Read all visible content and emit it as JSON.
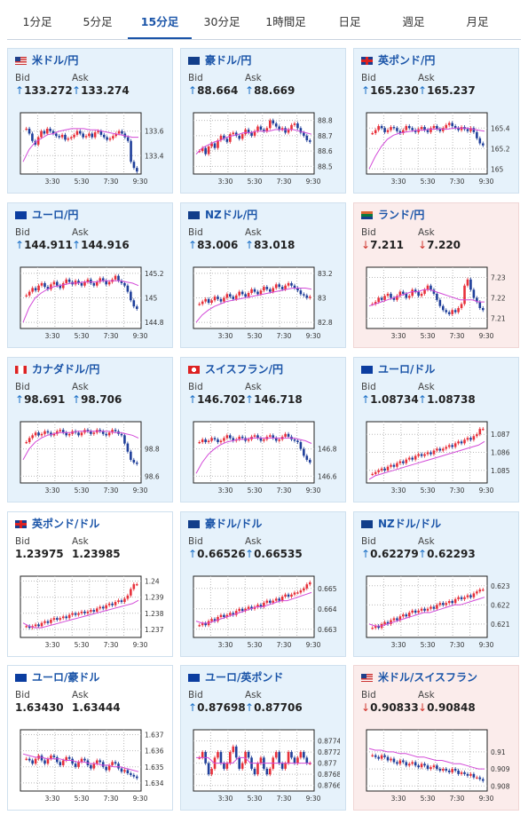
{
  "tabs": [
    "1分足",
    "5分足",
    "15分足",
    "30分足",
    "1時間足",
    "日足",
    "週足",
    "月足"
  ],
  "active_tab_index": 2,
  "labels": {
    "bid": "Bid",
    "ask": "Ask"
  },
  "colors": {
    "up": "#1a6fc6",
    "down": "#d0342c",
    "card_blue": "#e6f2fb",
    "card_red": "#fbeceb",
    "ma": "#d34ad8",
    "grid": "#b9b9b9"
  },
  "cards": [
    {
      "pair": "米ドル/円",
      "flag": "us",
      "direction": "up",
      "bid": "133.272",
      "ask": "133.274",
      "x_ticks": [
        "3:30",
        "5:30",
        "7:30",
        "9:30"
      ],
      "y_ticks": [
        "133.6",
        "133.4"
      ],
      "ymin": 133.25,
      "ymax": 133.75,
      "closes": [
        133.62,
        133.58,
        133.52,
        133.49,
        133.55,
        133.6,
        133.58,
        133.62,
        133.6,
        133.58,
        133.56,
        133.55,
        133.57,
        133.53,
        133.54,
        133.55,
        133.57,
        133.6,
        133.58,
        133.55,
        133.56,
        133.58,
        133.55,
        133.59,
        133.6,
        133.57,
        133.55,
        133.53,
        133.54,
        133.56,
        133.58,
        133.6,
        133.58,
        133.55,
        133.52,
        133.35,
        133.3,
        133.27
      ],
      "ma": [
        133.35,
        133.45,
        133.51,
        133.54,
        133.57,
        133.58,
        133.6,
        133.61,
        133.62,
        133.62,
        133.62,
        133.61,
        133.61,
        133.6,
        133.59,
        133.58,
        133.57,
        133.56,
        133.55,
        133.55
      ]
    },
    {
      "pair": "豪ドル/円",
      "flag": "au",
      "direction": "up",
      "bid": "88.664",
      "ask": "88.669",
      "x_ticks": [
        "3:30",
        "5:30",
        "7:30",
        "9:30"
      ],
      "y_ticks": [
        "88.8",
        "88.7",
        "88.6",
        "88.5"
      ],
      "ymin": 88.45,
      "ymax": 88.85,
      "closes": [
        88.6,
        88.62,
        88.58,
        88.63,
        88.65,
        88.62,
        88.67,
        88.7,
        88.68,
        88.66,
        88.71,
        88.72,
        88.7,
        88.68,
        88.71,
        88.74,
        88.72,
        88.7,
        88.73,
        88.76,
        88.74,
        88.73,
        88.75,
        88.8,
        88.78,
        88.76,
        88.74,
        88.75,
        88.72,
        88.74,
        88.77,
        88.78,
        88.75,
        88.72,
        88.7,
        88.67,
        88.66
      ],
      "ma": [
        88.58,
        88.62,
        88.64,
        88.66,
        88.67,
        88.69,
        88.7,
        88.71,
        88.72,
        88.72,
        88.73,
        88.73,
        88.73,
        88.74,
        88.74,
        88.74,
        88.74,
        88.73,
        88.72,
        88.71
      ]
    },
    {
      "pair": "英ポンド/円",
      "flag": "gb",
      "direction": "up",
      "bid": "165.230",
      "ask": "165.237",
      "x_ticks": [
        "3:30",
        "5:30",
        "7:30",
        "9:30"
      ],
      "y_ticks": [
        "165.4",
        "165.2",
        "165"
      ],
      "ymin": 164.95,
      "ymax": 165.55,
      "closes": [
        165.35,
        165.38,
        165.42,
        165.4,
        165.36,
        165.38,
        165.41,
        165.4,
        165.37,
        165.35,
        165.38,
        165.42,
        165.4,
        165.38,
        165.36,
        165.39,
        165.41,
        165.38,
        165.36,
        165.4,
        165.42,
        165.39,
        165.37,
        165.4,
        165.43,
        165.45,
        165.42,
        165.4,
        165.38,
        165.41,
        165.39,
        165.37,
        165.4,
        165.36,
        165.3,
        165.25,
        165.23
      ],
      "ma": [
        165.0,
        165.12,
        165.22,
        165.29,
        165.33,
        165.35,
        165.36,
        165.37,
        165.38,
        165.38,
        165.39,
        165.39,
        165.39,
        165.39,
        165.4,
        165.4,
        165.4,
        165.39,
        165.38,
        165.37
      ]
    },
    {
      "pair": "ユーロ/円",
      "flag": "eu",
      "direction": "up",
      "bid": "144.911",
      "ask": "144.916",
      "x_ticks": [
        "3:30",
        "5:30",
        "7:30",
        "9:30"
      ],
      "y_ticks": [
        "145.2",
        "145",
        "144.8"
      ],
      "ymin": 144.75,
      "ymax": 145.25,
      "closes": [
        145.02,
        145.05,
        145.08,
        145.06,
        145.1,
        145.12,
        145.09,
        145.07,
        145.11,
        145.13,
        145.1,
        145.08,
        145.12,
        145.15,
        145.13,
        145.11,
        145.14,
        145.12,
        145.1,
        145.13,
        145.15,
        145.12,
        145.1,
        145.13,
        145.16,
        145.14,
        145.11,
        145.13,
        145.15,
        145.18,
        145.14,
        145.12,
        145.1,
        145.05,
        144.98,
        144.93,
        144.91
      ],
      "ma": [
        144.8,
        144.92,
        145.0,
        145.04,
        145.07,
        145.09,
        145.1,
        145.11,
        145.12,
        145.12,
        145.13,
        145.13,
        145.13,
        145.14,
        145.14,
        145.14,
        145.14,
        145.13,
        145.12,
        145.1
      ]
    },
    {
      "pair": "NZドル/円",
      "flag": "nz",
      "direction": "up",
      "bid": "83.006",
      "ask": "83.018",
      "x_ticks": [
        "3:30",
        "5:30",
        "7:30",
        "9:30"
      ],
      "y_ticks": [
        "83.2",
        "83",
        "82.8"
      ],
      "ymin": 82.75,
      "ymax": 83.25,
      "closes": [
        82.95,
        82.97,
        82.99,
        82.96,
        82.98,
        83.01,
        82.99,
        82.97,
        83.0,
        83.03,
        83.01,
        82.99,
        83.02,
        83.05,
        83.03,
        83.01,
        83.04,
        83.07,
        83.05,
        83.03,
        83.06,
        83.09,
        83.07,
        83.05,
        83.08,
        83.11,
        83.09,
        83.07,
        83.1,
        83.12,
        83.1,
        83.08,
        83.06,
        83.03,
        83.02,
        83.0,
        83.01
      ],
      "ma": [
        82.8,
        82.86,
        82.9,
        82.93,
        82.95,
        82.97,
        82.98,
        82.99,
        83.0,
        83.01,
        83.02,
        83.03,
        83.04,
        83.05,
        83.06,
        83.07,
        83.08,
        83.08,
        83.08,
        83.07
      ]
    },
    {
      "pair": "ランド/円",
      "flag": "za",
      "direction": "down",
      "bid": "7.211",
      "ask": "7.220",
      "x_ticks": [
        "3:30",
        "5:30",
        "7:30",
        "9:30"
      ],
      "y_ticks": [
        "7.23",
        "7.22",
        "7.21"
      ],
      "ymin": 7.205,
      "ymax": 7.235,
      "closes": [
        7.217,
        7.218,
        7.22,
        7.219,
        7.221,
        7.222,
        7.22,
        7.219,
        7.221,
        7.223,
        7.222,
        7.22,
        7.221,
        7.224,
        7.223,
        7.221,
        7.222,
        7.224,
        7.226,
        7.224,
        7.222,
        7.219,
        7.216,
        7.214,
        7.213,
        7.212,
        7.214,
        7.213,
        7.215,
        7.217,
        7.226,
        7.229,
        7.224,
        7.22,
        7.218,
        7.215,
        7.214
      ],
      "ma": [
        7.216,
        7.217,
        7.218,
        7.219,
        7.22,
        7.221,
        7.222,
        7.223,
        7.223,
        7.224,
        7.224,
        7.223,
        7.222,
        7.221,
        7.22,
        7.219,
        7.219,
        7.219,
        7.218,
        7.218
      ]
    },
    {
      "pair": "カナダドル/円",
      "flag": "ca",
      "direction": "up",
      "bid": "98.691",
      "ask": "98.706",
      "x_ticks": [
        "3:30",
        "5:30",
        "7:30",
        "9:30"
      ],
      "y_ticks": [
        "98.8",
        "98.6"
      ],
      "ymin": 98.55,
      "ymax": 99.0,
      "closes": [
        98.85,
        98.88,
        98.9,
        98.92,
        98.9,
        98.91,
        98.93,
        98.92,
        98.9,
        98.91,
        98.93,
        98.94,
        98.92,
        98.9,
        98.91,
        98.93,
        98.92,
        98.9,
        98.92,
        98.94,
        98.93,
        98.91,
        98.92,
        98.94,
        98.93,
        98.91,
        98.9,
        98.92,
        98.94,
        98.93,
        98.91,
        98.9,
        98.84,
        98.78,
        98.72,
        98.7,
        98.69
      ],
      "ma": [
        98.72,
        98.8,
        98.85,
        98.88,
        98.9,
        98.91,
        98.92,
        98.92,
        98.92,
        98.93,
        98.93,
        98.93,
        98.93,
        98.93,
        98.93,
        98.92,
        98.92,
        98.91,
        98.9,
        98.88
      ]
    },
    {
      "pair": "スイスフラン/円",
      "flag": "ch",
      "direction": "up",
      "bid": "146.702",
      "ask": "146.718",
      "x_ticks": [
        "3:30",
        "5:30",
        "7:30",
        "9:30"
      ],
      "y_ticks": [
        "146.8",
        "146.6"
      ],
      "ymin": 146.55,
      "ymax": 147.0,
      "closes": [
        146.85,
        146.87,
        146.85,
        146.86,
        146.88,
        146.87,
        146.85,
        146.86,
        146.88,
        146.9,
        146.88,
        146.86,
        146.87,
        146.89,
        146.88,
        146.86,
        146.87,
        146.89,
        146.9,
        146.88,
        146.86,
        146.87,
        146.89,
        146.9,
        146.88,
        146.86,
        146.87,
        146.89,
        146.91,
        146.89,
        146.87,
        146.86,
        146.85,
        146.8,
        146.75,
        146.72,
        146.7
      ],
      "ma": [
        146.62,
        146.7,
        146.76,
        146.8,
        146.83,
        146.85,
        146.86,
        146.87,
        146.87,
        146.88,
        146.88,
        146.88,
        146.88,
        146.88,
        146.88,
        146.88,
        146.88,
        146.87,
        146.86,
        146.84
      ]
    },
    {
      "pair": "ユーロ/ドル",
      "flag": "eu",
      "direction": "up",
      "bid": "1.08734",
      "ask": "1.08738",
      "x_ticks": [
        "3:30",
        "5:30",
        "7:30",
        "9:30"
      ],
      "y_ticks": [
        "1.087",
        "1.086",
        "1.085"
      ],
      "ymin": 1.0843,
      "ymax": 1.0877,
      "closes": [
        1.0848,
        1.0849,
        1.085,
        1.0851,
        1.085,
        1.0852,
        1.0853,
        1.0852,
        1.0854,
        1.0855,
        1.0854,
        1.0856,
        1.0857,
        1.0856,
        1.0858,
        1.0859,
        1.0858,
        1.0859,
        1.086,
        1.0859,
        1.0861,
        1.0862,
        1.0861,
        1.0862,
        1.0863,
        1.0864,
        1.0863,
        1.0865,
        1.0866,
        1.0865,
        1.0867,
        1.0868,
        1.0867,
        1.0869,
        1.087,
        1.0873,
        1.0873
      ],
      "ma": [
        1.0845,
        1.0847,
        1.0848,
        1.0849,
        1.085,
        1.0851,
        1.0852,
        1.0853,
        1.0854,
        1.0855,
        1.0856,
        1.0857,
        1.0858,
        1.0859,
        1.086,
        1.0861,
        1.0862,
        1.0863,
        1.0864,
        1.0866
      ]
    },
    {
      "pair": "英ポンド/ドル",
      "flag": "gb",
      "direction": "none",
      "bid": "1.23975",
      "ask": "1.23985",
      "x_ticks": [
        "3:30",
        "5:30",
        "7:30",
        "9:30"
      ],
      "y_ticks": [
        "1.24",
        "1.239",
        "1.238",
        "1.237"
      ],
      "ymin": 1.2365,
      "ymax": 1.2403,
      "closes": [
        1.2372,
        1.2371,
        1.2372,
        1.2373,
        1.2372,
        1.2374,
        1.2375,
        1.2374,
        1.2376,
        1.2377,
        1.2376,
        1.2377,
        1.2378,
        1.2377,
        1.2379,
        1.238,
        1.2379,
        1.238,
        1.2381,
        1.238,
        1.2381,
        1.2382,
        1.2381,
        1.2383,
        1.2384,
        1.2383,
        1.2385,
        1.2386,
        1.2385,
        1.2387,
        1.2388,
        1.2387,
        1.2389,
        1.2391,
        1.2395,
        1.2398,
        1.2398
      ],
      "ma": [
        1.2374,
        1.2372,
        1.2371,
        1.2371,
        1.2372,
        1.2373,
        1.2374,
        1.2375,
        1.2376,
        1.2377,
        1.2378,
        1.2379,
        1.238,
        1.2381,
        1.2382,
        1.2383,
        1.2384,
        1.2385,
        1.2386,
        1.2388
      ]
    },
    {
      "pair": "豪ドル/ドル",
      "flag": "au",
      "direction": "up",
      "bid": "0.66526",
      "ask": "0.66535",
      "x_ticks": [
        "3:30",
        "5:30",
        "7:30",
        "9:30"
      ],
      "y_ticks": [
        "0.665",
        "0.664",
        "0.663"
      ],
      "ymin": 0.6626,
      "ymax": 0.6656,
      "closes": [
        0.6632,
        0.6633,
        0.6632,
        0.6634,
        0.6635,
        0.6634,
        0.6636,
        0.6637,
        0.6636,
        0.6637,
        0.6638,
        0.6637,
        0.6639,
        0.664,
        0.6639,
        0.664,
        0.6641,
        0.664,
        0.6641,
        0.6642,
        0.6641,
        0.6643,
        0.6644,
        0.6643,
        0.6644,
        0.6645,
        0.6644,
        0.6646,
        0.6647,
        0.6646,
        0.6647,
        0.6648,
        0.6648,
        0.6649,
        0.665,
        0.6652,
        0.6653
      ],
      "ma": [
        0.6634,
        0.6633,
        0.6633,
        0.6634,
        0.6635,
        0.6636,
        0.6637,
        0.6638,
        0.6639,
        0.664,
        0.6641,
        0.6641,
        0.6642,
        0.6643,
        0.6644,
        0.6644,
        0.6645,
        0.6646,
        0.6647,
        0.6648
      ]
    },
    {
      "pair": "NZドル/ドル",
      "flag": "nz",
      "direction": "up",
      "bid": "0.62279",
      "ask": "0.62293",
      "x_ticks": [
        "3:30",
        "5:30",
        "7:30",
        "9:30"
      ],
      "y_ticks": [
        "0.623",
        "0.622",
        "0.621"
      ],
      "ymin": 0.6203,
      "ymax": 0.6235,
      "closes": [
        0.6208,
        0.6209,
        0.6208,
        0.621,
        0.6211,
        0.621,
        0.6212,
        0.6213,
        0.6212,
        0.6214,
        0.6215,
        0.6214,
        0.6216,
        0.6217,
        0.6216,
        0.6217,
        0.6218,
        0.6217,
        0.6218,
        0.6219,
        0.6218,
        0.622,
        0.6221,
        0.622,
        0.6221,
        0.6222,
        0.6221,
        0.6223,
        0.6224,
        0.6223,
        0.6224,
        0.6225,
        0.6224,
        0.6226,
        0.6227,
        0.6228,
        0.6228
      ],
      "ma": [
        0.621,
        0.6209,
        0.6209,
        0.621,
        0.6211,
        0.6212,
        0.6213,
        0.6214,
        0.6215,
        0.6216,
        0.6216,
        0.6217,
        0.6218,
        0.6219,
        0.622,
        0.622,
        0.6221,
        0.6222,
        0.6223,
        0.6224
      ]
    },
    {
      "pair": "ユーロ/豪ドル",
      "flag": "eu",
      "direction": "none",
      "bid": "1.63430",
      "ask": "1.63444",
      "x_ticks": [
        "3:30",
        "5:30",
        "7:30",
        "9:30"
      ],
      "y_ticks": [
        "1.637",
        "1.636",
        "1.635",
        "1.634"
      ],
      "ymin": 1.6335,
      "ymax": 1.6373,
      "closes": [
        1.6355,
        1.6354,
        1.6352,
        1.6355,
        1.6357,
        1.6354,
        1.6352,
        1.6355,
        1.6357,
        1.6356,
        1.6353,
        1.6351,
        1.6354,
        1.6356,
        1.6355,
        1.6352,
        1.635,
        1.6353,
        1.6355,
        1.6354,
        1.6351,
        1.6349,
        1.6352,
        1.6354,
        1.6353,
        1.635,
        1.6348,
        1.6351,
        1.6353,
        1.6352,
        1.6349,
        1.6347,
        1.6348,
        1.6346,
        1.6345,
        1.6344,
        1.6343
      ],
      "ma": [
        1.6358,
        1.6357,
        1.6356,
        1.6356,
        1.6355,
        1.6355,
        1.6355,
        1.6354,
        1.6354,
        1.6353,
        1.6353,
        1.6352,
        1.6352,
        1.6351,
        1.6351,
        1.635,
        1.635,
        1.6349,
        1.6348,
        1.6347
      ]
    },
    {
      "pair": "ユーロ/英ポンド",
      "flag": "eu",
      "direction": "up",
      "bid": "0.87698",
      "ask": "0.87706",
      "x_ticks": [
        "3:30",
        "5:30",
        "7:30",
        "9:30"
      ],
      "y_ticks": [
        "0.8774",
        "0.8772",
        "0.877",
        "0.8768",
        "0.8766"
      ],
      "ymin": 0.8765,
      "ymax": 0.8776,
      "closes": [
        0.8771,
        0.8772,
        0.877,
        0.8768,
        0.8769,
        0.8771,
        0.8772,
        0.877,
        0.8769,
        0.877,
        0.8772,
        0.8773,
        0.8771,
        0.8769,
        0.877,
        0.8772,
        0.8771,
        0.8769,
        0.8768,
        0.877,
        0.8771,
        0.8769,
        0.8768,
        0.8769,
        0.8771,
        0.8772,
        0.877,
        0.8769,
        0.877,
        0.8772,
        0.8771,
        0.877,
        0.8771,
        0.8772,
        0.8771,
        0.877,
        0.877
      ],
      "ma": [
        0.8771,
        0.8771,
        0.8771,
        0.877,
        0.877,
        0.877,
        0.877,
        0.8771,
        0.8771,
        0.877,
        0.877,
        0.877,
        0.877,
        0.877,
        0.877,
        0.877,
        0.877,
        0.877,
        0.877,
        0.877
      ]
    },
    {
      "pair": "米ドル/スイスフラン",
      "flag": "us",
      "direction": "down",
      "bid": "0.90833",
      "ask": "0.90848",
      "x_ticks": [
        "3:30",
        "5:30",
        "7:30",
        "9:30"
      ],
      "y_ticks": [
        "0.91",
        "0.909",
        "0.908"
      ],
      "ymin": 0.9077,
      "ymax": 0.9113,
      "closes": [
        0.9098,
        0.9097,
        0.9096,
        0.9098,
        0.9097,
        0.9095,
        0.9096,
        0.9094,
        0.9093,
        0.9095,
        0.9094,
        0.9092,
        0.9093,
        0.9094,
        0.9092,
        0.9091,
        0.9093,
        0.9092,
        0.909,
        0.9091,
        0.9092,
        0.909,
        0.9089,
        0.909,
        0.9089,
        0.9088,
        0.909,
        0.9089,
        0.9087,
        0.9088,
        0.9087,
        0.9086,
        0.9087,
        0.9085,
        0.9085,
        0.9084,
        0.9083
      ],
      "ma": [
        0.9102,
        0.9101,
        0.9101,
        0.91,
        0.91,
        0.9099,
        0.9099,
        0.9098,
        0.9097,
        0.9097,
        0.9096,
        0.9095,
        0.9095,
        0.9094,
        0.9093,
        0.9093,
        0.9092,
        0.9091,
        0.909,
        0.909
      ]
    }
  ]
}
